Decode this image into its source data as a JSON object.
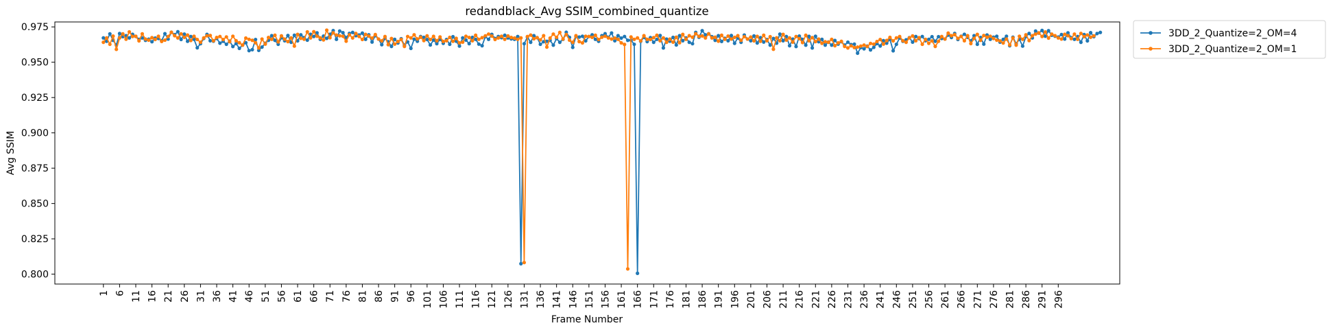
{
  "chart_data": {
    "type": "line",
    "title": "redandblack_Avg SSIM_combined_quantize",
    "xlabel": "Frame Number",
    "ylabel": "Avg SSIM",
    "xlim": [
      -14,
      315
    ],
    "ylim": [
      0.793,
      0.9785
    ],
    "xticks": [
      1,
      6,
      11,
      16,
      21,
      26,
      31,
      36,
      41,
      46,
      51,
      56,
      61,
      66,
      71,
      76,
      81,
      86,
      91,
      96,
      101,
      106,
      111,
      116,
      121,
      126,
      131,
      136,
      141,
      146,
      151,
      156,
      161,
      166,
      171,
      176,
      181,
      186,
      191,
      196,
      201,
      206,
      211,
      216,
      221,
      226,
      231,
      236,
      241,
      246,
      251,
      256,
      261,
      266,
      271,
      276,
      281,
      286,
      291,
      296
    ],
    "yticks": [
      0.8,
      0.825,
      0.85,
      0.875,
      0.9,
      0.925,
      0.95,
      0.975
    ],
    "ytick_labels": [
      "0.800",
      "0.825",
      "0.850",
      "0.875",
      "0.900",
      "0.925",
      "0.950",
      "0.975"
    ],
    "legend_position": "outside top-right",
    "x_start": 1,
    "series": [
      {
        "name": "3DD_2_Quantize=2_OM=4",
        "color": "#1f77b4",
        "values": [
          0.9672,
          0.9648,
          0.9701,
          0.9655,
          0.9622,
          0.9703,
          0.9681,
          0.9688,
          0.9672,
          0.9698,
          0.9683,
          0.9662,
          0.9672,
          0.9655,
          0.9663,
          0.9645,
          0.9671,
          0.9668,
          0.9652,
          0.9702,
          0.9664,
          0.9712,
          0.9695,
          0.9716,
          0.9661,
          0.9699,
          0.9648,
          0.9682,
          0.9662,
          0.9602,
          0.9631,
          0.9668,
          0.9697,
          0.9652,
          0.9649,
          0.9668,
          0.9635,
          0.9648,
          0.9627,
          0.9649,
          0.9611,
          0.9632,
          0.9598,
          0.9621,
          0.9638,
          0.9582,
          0.9589,
          0.9661,
          0.9584,
          0.9607,
          0.9634,
          0.9655,
          0.9688,
          0.9655,
          0.9627,
          0.9673,
          0.9652,
          0.9689,
          0.9641,
          0.9691,
          0.9651,
          0.9694,
          0.9674,
          0.9656,
          0.9698,
          0.9682,
          0.9708,
          0.9662,
          0.9685,
          0.9669,
          0.9698,
          0.9724,
          0.9662,
          0.9721,
          0.9709,
          0.9674,
          0.9704,
          0.9711,
          0.9688,
          0.9693,
          0.9706,
          0.9662,
          0.9694,
          0.9643,
          0.9688,
          0.9664,
          0.9624,
          0.9669,
          0.9645,
          0.9612,
          0.9662,
          0.9636,
          0.9666,
          0.9621,
          0.9644,
          0.9598,
          0.9663,
          0.9648,
          0.9682,
          0.9676,
          0.9661,
          0.9622,
          0.9657,
          0.9631,
          0.9662,
          0.9634,
          0.9661,
          0.9627,
          0.9681,
          0.9649,
          0.9614,
          0.9672,
          0.9657,
          0.9631,
          0.9676,
          0.9662,
          0.9628,
          0.9617,
          0.9681,
          0.9662,
          0.9697,
          0.9668,
          0.9682,
          0.9674,
          0.9691,
          0.9672,
          0.9665,
          0.9662,
          0.9682,
          0.8074,
          0.9631,
          0.9678,
          0.9641,
          0.9688,
          0.9674,
          0.9627,
          0.9645,
          0.9648,
          0.9655,
          0.9621,
          0.9667,
          0.9641,
          0.9662,
          0.9712,
          0.9676,
          0.9605,
          0.9683,
          0.9678,
          0.9684,
          0.9651,
          0.9682,
          0.9694,
          0.9662,
          0.9648,
          0.9688,
          0.9702,
          0.9676,
          0.9707,
          0.9652,
          0.9688,
          0.9671,
          0.9682,
          0.9655,
          0.9656,
          0.9627,
          0.8006,
          0.9648,
          0.9676,
          0.9646,
          0.9674,
          0.9641,
          0.9662,
          0.9689,
          0.9601,
          0.9664,
          0.9649,
          0.9676,
          0.9622,
          0.9688,
          0.9652,
          0.9672,
          0.9641,
          0.9631,
          0.9711,
          0.9677,
          0.9723,
          0.9694,
          0.9702,
          0.9681,
          0.9655,
          0.9688,
          0.9647,
          0.9669,
          0.9652,
          0.9689,
          0.9634,
          0.9672,
          0.9641,
          0.9692,
          0.9664,
          0.9652,
          0.9686,
          0.9636,
          0.9674,
          0.9643,
          0.9661,
          0.9621,
          0.9668,
          0.9635,
          0.9699,
          0.9652,
          0.9682,
          0.9617,
          0.9664,
          0.9611,
          0.9685,
          0.9662,
          0.9621,
          0.9683,
          0.9601,
          0.9684,
          0.9645,
          0.9662,
          0.9621,
          0.9643,
          0.9621,
          0.9654,
          0.9628,
          0.9645,
          0.9621,
          0.9642,
          0.9625,
          0.9628,
          0.9564,
          0.9604,
          0.9595,
          0.9614,
          0.9587,
          0.9605,
          0.9632,
          0.9615,
          0.9653,
          0.9635,
          0.9662,
          0.9581,
          0.9627,
          0.9672,
          0.9648,
          0.9659,
          0.9674,
          0.9642,
          0.9682,
          0.9667,
          0.9682,
          0.9652,
          0.9662,
          0.9681,
          0.9648,
          0.9681,
          0.9668,
          0.9664,
          0.9692,
          0.9675,
          0.9704,
          0.9661,
          0.9684,
          0.9698,
          0.9676,
          0.9651,
          0.9688,
          0.9627,
          0.9675,
          0.9628,
          0.9693,
          0.9662,
          0.9677,
          0.9684,
          0.9642,
          0.9662,
          0.9684,
          0.9617,
          0.9677,
          0.9631,
          0.9662,
          0.9614,
          0.9681,
          0.9704,
          0.9672,
          0.9721,
          0.9706,
          0.9725,
          0.9684,
          0.9723,
          0.9691,
          0.9684,
          0.9678,
          0.9696,
          0.9664,
          0.9708,
          0.9674,
          0.9662,
          0.9682,
          0.9641,
          0.9696,
          0.9651,
          0.9709,
          0.9681,
          0.9703,
          0.9711
        ]
      },
      {
        "name": "3DD_2_Quantize=2_OM=1",
        "color": "#ff7f0e",
        "values": [
          0.9641,
          0.9672,
          0.9627,
          0.9685,
          0.9591,
          0.9672,
          0.9701,
          0.9663,
          0.9715,
          0.9682,
          0.9684,
          0.9651,
          0.9701,
          0.9664,
          0.9656,
          0.9674,
          0.9661,
          0.9684,
          0.9647,
          0.9656,
          0.9682,
          0.9712,
          0.9688,
          0.9672,
          0.9701,
          0.9676,
          0.9692,
          0.9654,
          0.9684,
          0.9661,
          0.9641,
          0.9672,
          0.9687,
          0.9689,
          0.9652,
          0.9675,
          0.9682,
          0.9661,
          0.9679,
          0.9645,
          0.9684,
          0.9652,
          0.9638,
          0.9621,
          0.9671,
          0.9662,
          0.9655,
          0.9638,
          0.9601,
          0.9664,
          0.9628,
          0.9675,
          0.9662,
          0.9691,
          0.9644,
          0.9687,
          0.9664,
          0.9646,
          0.9672,
          0.9614,
          0.9697,
          0.9669,
          0.9663,
          0.9715,
          0.9672,
          0.9716,
          0.9684,
          0.9672,
          0.9658,
          0.9727,
          0.9673,
          0.9708,
          0.9692,
          0.9687,
          0.9684,
          0.9649,
          0.9694,
          0.9672,
          0.9704,
          0.9682,
          0.9661,
          0.9697,
          0.9685,
          0.9671,
          0.9696,
          0.9664,
          0.9651,
          0.9682,
          0.9624,
          0.9668,
          0.9628,
          0.9647,
          0.9661,
          0.9612,
          0.9682,
          0.9672,
          0.9694,
          0.9665,
          0.9677,
          0.9653,
          0.9687,
          0.9661,
          0.9683,
          0.9652,
          0.9679,
          0.9647,
          0.9652,
          0.9676,
          0.9648,
          0.9669,
          0.9637,
          0.9642,
          0.9684,
          0.9675,
          0.9652,
          0.9691,
          0.9662,
          0.9674,
          0.9687,
          0.9699,
          0.9685,
          0.9661,
          0.9672,
          0.9684,
          0.9662,
          0.9686,
          0.9675,
          0.9671,
          0.9662,
          0.9672,
          0.8082,
          0.9682,
          0.9692,
          0.9666,
          0.9674,
          0.9658,
          0.9688,
          0.9607,
          0.9671,
          0.9699,
          0.9676,
          0.9711,
          0.9664,
          0.9696,
          0.9656,
          0.9641,
          0.9688,
          0.9646,
          0.9637,
          0.9684,
          0.9682,
          0.9676,
          0.9691,
          0.9661,
          0.9677,
          0.9684,
          0.9672,
          0.9664,
          0.9671,
          0.9662,
          0.9637,
          0.9626,
          0.8037,
          0.9679,
          0.9662,
          0.9672,
          0.9651,
          0.9688,
          0.9662,
          0.9661,
          0.9674,
          0.9691,
          0.9652,
          0.9672,
          0.9641,
          0.9664,
          0.9642,
          0.9677,
          0.9638,
          0.9697,
          0.9662,
          0.9688,
          0.9677,
          0.9702,
          0.9683,
          0.9686,
          0.9672,
          0.9701,
          0.9672,
          0.9677,
          0.9649,
          0.9691,
          0.9662,
          0.9685,
          0.9664,
          0.9676,
          0.9688,
          0.9655,
          0.9681,
          0.9664,
          0.9678,
          0.9651,
          0.9683,
          0.9648,
          0.9691,
          0.9652,
          0.9681,
          0.9592,
          0.9673,
          0.9652,
          0.9697,
          0.9657,
          0.9672,
          0.9642,
          0.9682,
          0.9667,
          0.9639,
          0.9691,
          0.9652,
          0.9674,
          0.9646,
          0.9664,
          0.9634,
          0.9645,
          0.9641,
          0.9662,
          0.9617,
          0.9637,
          0.9648,
          0.9612,
          0.9601,
          0.9616,
          0.9604,
          0.9607,
          0.9614,
          0.9621,
          0.9611,
          0.9633,
          0.9628,
          0.9647,
          0.9661,
          0.9628,
          0.9654,
          0.9676,
          0.9651,
          0.9672,
          0.9682,
          0.9652,
          0.9641,
          0.9672,
          0.9686,
          0.9652,
          0.9674,
          0.9627,
          0.9662,
          0.9634,
          0.9651,
          0.9612,
          0.9648,
          0.9682,
          0.9664,
          0.9706,
          0.9688,
          0.9695,
          0.9669,
          0.9682,
          0.9652,
          0.9688,
          0.9632,
          0.9668,
          0.9697,
          0.9655,
          0.9689,
          0.9677,
          0.9684,
          0.9668,
          0.9656,
          0.9651,
          0.9636,
          0.9664,
          0.9622,
          0.9672,
          0.9621,
          0.9684,
          0.9662,
          0.9694,
          0.9653,
          0.9688,
          0.9699,
          0.9708,
          0.9682,
          0.9714,
          0.9671,
          0.9699,
          0.9688,
          0.9672,
          0.9664,
          0.9698,
          0.9688,
          0.9667,
          0.9699,
          0.9662,
          0.9704,
          0.9681,
          0.9693,
          0.9677,
          0.9687
        ]
      }
    ]
  }
}
